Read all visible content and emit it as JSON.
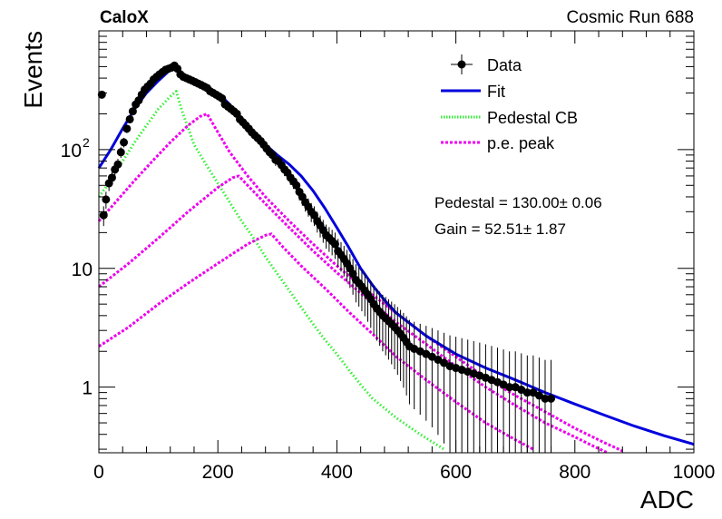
{
  "chart_data": {
    "type": "scatter",
    "header_left": "CaloX",
    "header_right": "Cosmic Run 688",
    "xlabel": "ADC",
    "ylabel": "Events",
    "xlim": [
      0,
      1000
    ],
    "ylim": [
      0.28,
      1000
    ],
    "yscale": "log",
    "grid": false,
    "legend_position": "top-right",
    "x_ticks": [
      0,
      200,
      400,
      600,
      800,
      1000
    ],
    "y_ticks": [
      {
        "value": 1,
        "label": "1"
      },
      {
        "value": 10,
        "label": "10"
      },
      {
        "value": 100,
        "label": "10",
        "exp": "2"
      }
    ],
    "legend": [
      {
        "key": "data",
        "label": "Data"
      },
      {
        "key": "fit",
        "label": "Fit"
      },
      {
        "key": "ped",
        "label": "Pedestal CB"
      },
      {
        "key": "pe",
        "label": "p.e. peak"
      }
    ],
    "annotations": [
      {
        "text": "Pedestal = 130.00± 0.06"
      },
      {
        "text": "Gain = 52.51± 1.87"
      }
    ],
    "colors": {
      "data": "#000000",
      "fit": "#0000dd",
      "pedestal_cb": "#33ee33",
      "pe_peak": "#ee00ee"
    },
    "series": [
      {
        "name": "Fit",
        "style": "line",
        "points": [
          [
            0,
            70
          ],
          [
            20,
            100
          ],
          [
            40,
            150
          ],
          [
            60,
            220
          ],
          [
            80,
            300
          ],
          [
            100,
            380
          ],
          [
            120,
            470
          ],
          [
            130,
            500
          ],
          [
            140,
            440
          ],
          [
            160,
            380
          ],
          [
            180,
            340
          ],
          [
            200,
            300
          ],
          [
            220,
            240
          ],
          [
            240,
            180
          ],
          [
            260,
            140
          ],
          [
            280,
            110
          ],
          [
            300,
            90
          ],
          [
            320,
            75
          ],
          [
            340,
            60
          ],
          [
            360,
            45
          ],
          [
            380,
            32
          ],
          [
            400,
            22
          ],
          [
            420,
            15
          ],
          [
            440,
            10
          ],
          [
            460,
            7.2
          ],
          [
            480,
            5.4
          ],
          [
            500,
            4.2
          ],
          [
            550,
            2.7
          ],
          [
            600,
            1.9
          ],
          [
            650,
            1.45
          ],
          [
            700,
            1.15
          ],
          [
            750,
            0.9
          ],
          [
            800,
            0.72
          ],
          [
            850,
            0.58
          ],
          [
            900,
            0.47
          ],
          [
            950,
            0.39
          ],
          [
            1000,
            0.33
          ]
        ]
      },
      {
        "name": "Pedestal CB",
        "style": "dotted",
        "points": [
          [
            0,
            40
          ],
          [
            20,
            55
          ],
          [
            40,
            80
          ],
          [
            60,
            115
          ],
          [
            80,
            160
          ],
          [
            100,
            220
          ],
          [
            120,
            280
          ],
          [
            130,
            310
          ],
          [
            140,
            210
          ],
          [
            160,
            110
          ],
          [
            180,
            75
          ],
          [
            200,
            52
          ],
          [
            220,
            36
          ],
          [
            240,
            25
          ],
          [
            260,
            18
          ],
          [
            280,
            12.5
          ],
          [
            300,
            9
          ],
          [
            320,
            6.5
          ],
          [
            340,
            4.7
          ],
          [
            360,
            3.4
          ],
          [
            380,
            2.5
          ],
          [
            400,
            1.9
          ],
          [
            420,
            1.4
          ],
          [
            440,
            1.05
          ],
          [
            460,
            0.8
          ],
          [
            500,
            0.55
          ],
          [
            540,
            0.4
          ],
          [
            580,
            0.3
          ],
          [
            600,
            0.26
          ]
        ]
      },
      {
        "name": "p.e. peak 1",
        "style": "dotted",
        "points": [
          [
            0,
            25
          ],
          [
            30,
            37
          ],
          [
            60,
            55
          ],
          [
            90,
            80
          ],
          [
            120,
            115
          ],
          [
            150,
            160
          ],
          [
            170,
            190
          ],
          [
            182,
            200
          ],
          [
            200,
            140
          ],
          [
            220,
            95
          ],
          [
            250,
            60
          ],
          [
            280,
            40
          ],
          [
            320,
            25
          ],
          [
            360,
            16
          ],
          [
            400,
            10.5
          ],
          [
            450,
            6.5
          ],
          [
            500,
            4.2
          ],
          [
            550,
            2.7
          ],
          [
            600,
            1.8
          ],
          [
            650,
            1.2
          ],
          [
            700,
            0.85
          ],
          [
            750,
            0.62
          ],
          [
            800,
            0.45
          ],
          [
            850,
            0.34
          ],
          [
            880,
            0.29
          ]
        ]
      },
      {
        "name": "p.e. peak 2",
        "style": "dotted",
        "points": [
          [
            0,
            7
          ],
          [
            50,
            11
          ],
          [
            100,
            18
          ],
          [
            150,
            30
          ],
          [
            200,
            48
          ],
          [
            225,
            58
          ],
          [
            235,
            60
          ],
          [
            250,
            50
          ],
          [
            280,
            35
          ],
          [
            320,
            22
          ],
          [
            360,
            14
          ],
          [
            400,
            9.2
          ],
          [
            450,
            5.6
          ],
          [
            500,
            3.5
          ],
          [
            550,
            2.3
          ],
          [
            600,
            1.5
          ],
          [
            650,
            1.0
          ],
          [
            700,
            0.7
          ],
          [
            750,
            0.5
          ],
          [
            800,
            0.38
          ],
          [
            830,
            0.32
          ],
          [
            855,
            0.28
          ]
        ]
      },
      {
        "name": "p.e. peak 3",
        "style": "dotted",
        "points": [
          [
            0,
            2.2
          ],
          [
            50,
            3.2
          ],
          [
            100,
            5
          ],
          [
            150,
            7.5
          ],
          [
            200,
            11
          ],
          [
            250,
            16
          ],
          [
            280,
            19
          ],
          [
            290,
            19.5
          ],
          [
            310,
            15
          ],
          [
            340,
            10.5
          ],
          [
            380,
            6.8
          ],
          [
            420,
            4.3
          ],
          [
            460,
            2.8
          ],
          [
            500,
            1.8
          ],
          [
            550,
            1.15
          ],
          [
            600,
            0.75
          ],
          [
            650,
            0.5
          ],
          [
            700,
            0.36
          ],
          [
            730,
            0.3
          ],
          [
            760,
            0.27
          ]
        ]
      },
      {
        "name": "Data",
        "style": "markers",
        "points": [
          [
            5,
            290
          ],
          [
            8,
            28
          ],
          [
            12,
            38
          ],
          [
            17,
            52
          ],
          [
            22,
            58
          ],
          [
            27,
            68
          ],
          [
            32,
            75
          ],
          [
            37,
            95
          ],
          [
            42,
            115
          ],
          [
            47,
            150
          ],
          [
            52,
            180
          ],
          [
            57,
            210
          ],
          [
            62,
            240
          ],
          [
            67,
            260
          ],
          [
            72,
            290
          ],
          [
            77,
            320
          ],
          [
            82,
            340
          ],
          [
            87,
            360
          ],
          [
            92,
            390
          ],
          [
            97,
            410
          ],
          [
            102,
            430
          ],
          [
            107,
            450
          ],
          [
            112,
            470
          ],
          [
            117,
            480
          ],
          [
            122,
            490
          ],
          [
            127,
            510
          ],
          [
            132,
            480
          ],
          [
            137,
            430
          ],
          [
            142,
            410
          ],
          [
            147,
            400
          ],
          [
            152,
            390
          ],
          [
            157,
            380
          ],
          [
            162,
            370
          ],
          [
            167,
            360
          ],
          [
            172,
            350
          ],
          [
            177,
            340
          ],
          [
            182,
            330
          ],
          [
            187,
            310
          ],
          [
            192,
            300
          ],
          [
            197,
            290
          ],
          [
            202,
            280
          ],
          [
            207,
            270
          ],
          [
            212,
            240
          ],
          [
            217,
            230
          ],
          [
            222,
            220
          ],
          [
            227,
            210
          ],
          [
            232,
            200
          ],
          [
            237,
            180
          ],
          [
            242,
            170
          ],
          [
            247,
            160
          ],
          [
            252,
            150
          ],
          [
            257,
            140
          ],
          [
            262,
            132
          ],
          [
            267,
            125
          ],
          [
            272,
            118
          ],
          [
            277,
            110
          ],
          [
            282,
            102
          ],
          [
            287,
            95
          ],
          [
            292,
            90
          ],
          [
            297,
            82
          ],
          [
            302,
            80
          ],
          [
            307,
            74
          ],
          [
            312,
            68
          ],
          [
            317,
            64
          ],
          [
            322,
            58
          ],
          [
            327,
            54
          ],
          [
            332,
            50
          ],
          [
            337,
            44
          ],
          [
            342,
            40
          ],
          [
            347,
            36
          ],
          [
            352,
            33
          ],
          [
            357,
            30
          ],
          [
            362,
            28
          ],
          [
            367,
            25
          ],
          [
            372,
            23
          ],
          [
            377,
            21
          ],
          [
            382,
            19
          ],
          [
            387,
            18
          ],
          [
            392,
            17
          ],
          [
            397,
            16
          ],
          [
            402,
            14
          ],
          [
            407,
            13
          ],
          [
            412,
            12
          ],
          [
            417,
            11
          ],
          [
            422,
            10
          ],
          [
            427,
            9
          ],
          [
            432,
            8
          ],
          [
            437,
            7.5
          ],
          [
            442,
            7
          ],
          [
            447,
            6.5
          ],
          [
            452,
            6
          ],
          [
            457,
            5.5
          ],
          [
            462,
            5
          ],
          [
            467,
            4.6
          ],
          [
            472,
            4.3
          ],
          [
            477,
            4
          ],
          [
            482,
            3.8
          ],
          [
            487,
            3.6
          ],
          [
            492,
            3.4
          ],
          [
            497,
            3.2
          ],
          [
            502,
            3
          ],
          [
            507,
            2.8
          ],
          [
            512,
            2.6
          ],
          [
            517,
            2.4
          ],
          [
            522,
            2.2
          ],
          [
            530,
            2.1
          ],
          [
            540,
            2
          ],
          [
            550,
            1.9
          ],
          [
            560,
            1.8
          ],
          [
            570,
            1.7
          ],
          [
            580,
            1.6
          ],
          [
            590,
            1.5
          ],
          [
            600,
            1.45
          ],
          [
            610,
            1.4
          ],
          [
            620,
            1.35
          ],
          [
            630,
            1.3
          ],
          [
            640,
            1.25
          ],
          [
            650,
            1.2
          ],
          [
            660,
            1.15
          ],
          [
            670,
            1.1
          ],
          [
            680,
            1.05
          ],
          [
            690,
            1
          ],
          [
            700,
            1
          ],
          [
            710,
            0.95
          ],
          [
            720,
            0.9
          ],
          [
            730,
            0.9
          ],
          [
            740,
            0.85
          ],
          [
            750,
            0.8
          ],
          [
            760,
            0.8
          ]
        ]
      }
    ]
  }
}
